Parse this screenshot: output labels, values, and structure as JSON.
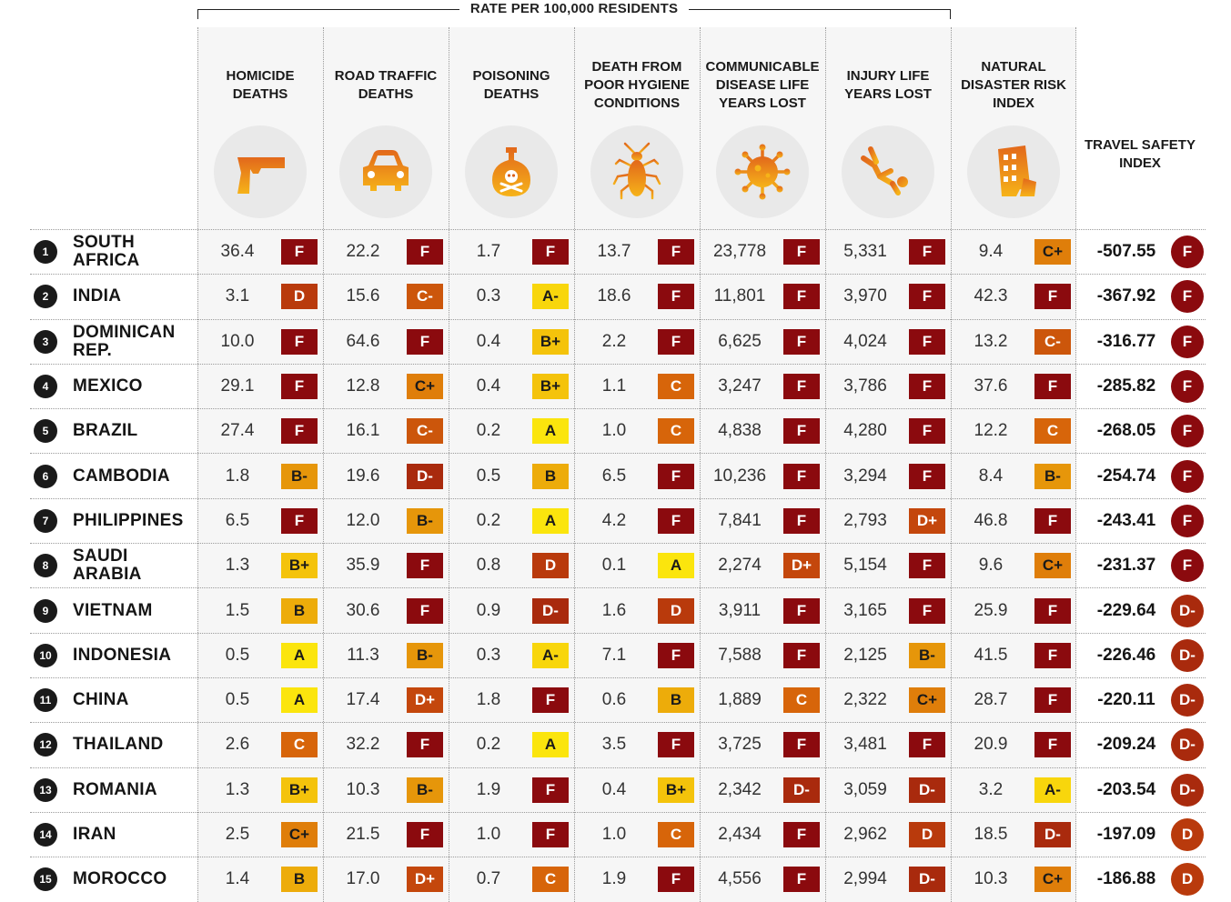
{
  "banner": "RATE PER 100,000 RESIDENTS",
  "final_heading": "TRAVEL SAFETY INDEX",
  "colors": {
    "F": "#8b0a0e",
    "D-": "#a92a0d",
    "D": "#b93a0c",
    "D+": "#c4470c",
    "C-": "#cc560b",
    "C": "#d7650a",
    "C+": "#df7e0a",
    "B-": "#e6960a",
    "B": "#edac0a",
    "B+": "#f4c30b",
    "A-": "#f8d60c",
    "A": "#fbe50d"
  },
  "chart_data": {
    "type": "table",
    "columns": [
      {
        "label": "HOMICIDE DEATHS",
        "icon": "gun-icon"
      },
      {
        "label": "ROAD TRAFFIC DEATHS",
        "icon": "car-icon"
      },
      {
        "label": "POISONING DEATHS",
        "icon": "poison-bottle-icon"
      },
      {
        "label": "DEATH FROM POOR HYGIENE CONDITIONS",
        "icon": "cockroach-icon"
      },
      {
        "label": "COMMUNICABLE DISEASE LIFE YEARS LOST",
        "icon": "virus-icon"
      },
      {
        "label": "INJURY LIFE YEARS LOST",
        "icon": "falling-person-icon"
      },
      {
        "label": "NATURAL DISASTER RISK INDEX",
        "icon": "collapsing-building-icon"
      }
    ],
    "rows": [
      {
        "rank": "1",
        "country": "SOUTH AFRICA",
        "cells": [
          [
            "36.4",
            "F"
          ],
          [
            "22.2",
            "F"
          ],
          [
            "1.7",
            "F"
          ],
          [
            "13.7",
            "F"
          ],
          [
            "23,778",
            "F"
          ],
          [
            "5,331",
            "F"
          ],
          [
            "9.4",
            "C+"
          ]
        ],
        "index": "-507.55",
        "grade": "F"
      },
      {
        "rank": "2",
        "country": "INDIA",
        "cells": [
          [
            "3.1",
            "D"
          ],
          [
            "15.6",
            "C-"
          ],
          [
            "0.3",
            "A-"
          ],
          [
            "18.6",
            "F"
          ],
          [
            "11,801",
            "F"
          ],
          [
            "3,970",
            "F"
          ],
          [
            "42.3",
            "F"
          ]
        ],
        "index": "-367.92",
        "grade": "F"
      },
      {
        "rank": "3",
        "country": "DOMINICAN REP.",
        "cells": [
          [
            "10.0",
            "F"
          ],
          [
            "64.6",
            "F"
          ],
          [
            "0.4",
            "B+"
          ],
          [
            "2.2",
            "F"
          ],
          [
            "6,625",
            "F"
          ],
          [
            "4,024",
            "F"
          ],
          [
            "13.2",
            "C-"
          ]
        ],
        "index": "-316.77",
        "grade": "F"
      },
      {
        "rank": "4",
        "country": "MEXICO",
        "cells": [
          [
            "29.1",
            "F"
          ],
          [
            "12.8",
            "C+"
          ],
          [
            "0.4",
            "B+"
          ],
          [
            "1.1",
            "C"
          ],
          [
            "3,247",
            "F"
          ],
          [
            "3,786",
            "F"
          ],
          [
            "37.6",
            "F"
          ]
        ],
        "index": "-285.82",
        "grade": "F"
      },
      {
        "rank": "5",
        "country": "BRAZIL",
        "cells": [
          [
            "27.4",
            "F"
          ],
          [
            "16.1",
            "C-"
          ],
          [
            "0.2",
            "A"
          ],
          [
            "1.0",
            "C"
          ],
          [
            "4,838",
            "F"
          ],
          [
            "4,280",
            "F"
          ],
          [
            "12.2",
            "C"
          ]
        ],
        "index": "-268.05",
        "grade": "F"
      },
      {
        "rank": "6",
        "country": "CAMBODIA",
        "cells": [
          [
            "1.8",
            "B-"
          ],
          [
            "19.6",
            "D-"
          ],
          [
            "0.5",
            "B"
          ],
          [
            "6.5",
            "F"
          ],
          [
            "10,236",
            "F"
          ],
          [
            "3,294",
            "F"
          ],
          [
            "8.4",
            "B-"
          ]
        ],
        "index": "-254.74",
        "grade": "F"
      },
      {
        "rank": "7",
        "country": "PHILIPPINES",
        "cells": [
          [
            "6.5",
            "F"
          ],
          [
            "12.0",
            "B-"
          ],
          [
            "0.2",
            "A"
          ],
          [
            "4.2",
            "F"
          ],
          [
            "7,841",
            "F"
          ],
          [
            "2,793",
            "D+"
          ],
          [
            "46.8",
            "F"
          ]
        ],
        "index": "-243.41",
        "grade": "F"
      },
      {
        "rank": "8",
        "country": "SAUDI ARABIA",
        "cells": [
          [
            "1.3",
            "B+"
          ],
          [
            "35.9",
            "F"
          ],
          [
            "0.8",
            "D"
          ],
          [
            "0.1",
            "A"
          ],
          [
            "2,274",
            "D+"
          ],
          [
            "5,154",
            "F"
          ],
          [
            "9.6",
            "C+"
          ]
        ],
        "index": "-231.37",
        "grade": "F"
      },
      {
        "rank": "9",
        "country": "VIETNAM",
        "cells": [
          [
            "1.5",
            "B"
          ],
          [
            "30.6",
            "F"
          ],
          [
            "0.9",
            "D-"
          ],
          [
            "1.6",
            "D"
          ],
          [
            "3,911",
            "F"
          ],
          [
            "3,165",
            "F"
          ],
          [
            "25.9",
            "F"
          ]
        ],
        "index": "-229.64",
        "grade": "D-"
      },
      {
        "rank": "10",
        "country": "INDONESIA",
        "cells": [
          [
            "0.5",
            "A"
          ],
          [
            "11.3",
            "B-"
          ],
          [
            "0.3",
            "A-"
          ],
          [
            "7.1",
            "F"
          ],
          [
            "7,588",
            "F"
          ],
          [
            "2,125",
            "B-"
          ],
          [
            "41.5",
            "F"
          ]
        ],
        "index": "-226.46",
        "grade": "D-"
      },
      {
        "rank": "11",
        "country": "CHINA",
        "cells": [
          [
            "0.5",
            "A"
          ],
          [
            "17.4",
            "D+"
          ],
          [
            "1.8",
            "F"
          ],
          [
            "0.6",
            "B"
          ],
          [
            "1,889",
            "C"
          ],
          [
            "2,322",
            "C+"
          ],
          [
            "28.7",
            "F"
          ]
        ],
        "index": "-220.11",
        "grade": "D-"
      },
      {
        "rank": "12",
        "country": "THAILAND",
        "cells": [
          [
            "2.6",
            "C"
          ],
          [
            "32.2",
            "F"
          ],
          [
            "0.2",
            "A"
          ],
          [
            "3.5",
            "F"
          ],
          [
            "3,725",
            "F"
          ],
          [
            "3,481",
            "F"
          ],
          [
            "20.9",
            "F"
          ]
        ],
        "index": "-209.24",
        "grade": "D-"
      },
      {
        "rank": "13",
        "country": "ROMANIA",
        "cells": [
          [
            "1.3",
            "B+"
          ],
          [
            "10.3",
            "B-"
          ],
          [
            "1.9",
            "F"
          ],
          [
            "0.4",
            "B+"
          ],
          [
            "2,342",
            "D-"
          ],
          [
            "3,059",
            "D-"
          ],
          [
            "3.2",
            "A-"
          ]
        ],
        "index": "-203.54",
        "grade": "D-"
      },
      {
        "rank": "14",
        "country": "IRAN",
        "cells": [
          [
            "2.5",
            "C+"
          ],
          [
            "21.5",
            "F"
          ],
          [
            "1.0",
            "F"
          ],
          [
            "1.0",
            "C"
          ],
          [
            "2,434",
            "F"
          ],
          [
            "2,962",
            "D"
          ],
          [
            "18.5",
            "D-"
          ]
        ],
        "index": "-197.09",
        "grade": "D"
      },
      {
        "rank": "15",
        "country": "MOROCCO",
        "cells": [
          [
            "1.4",
            "B"
          ],
          [
            "17.0",
            "D+"
          ],
          [
            "0.7",
            "C"
          ],
          [
            "1.9",
            "F"
          ],
          [
            "4,556",
            "F"
          ],
          [
            "2,994",
            "D-"
          ],
          [
            "10.3",
            "C+"
          ]
        ],
        "index": "-186.88",
        "grade": "D"
      }
    ]
  }
}
